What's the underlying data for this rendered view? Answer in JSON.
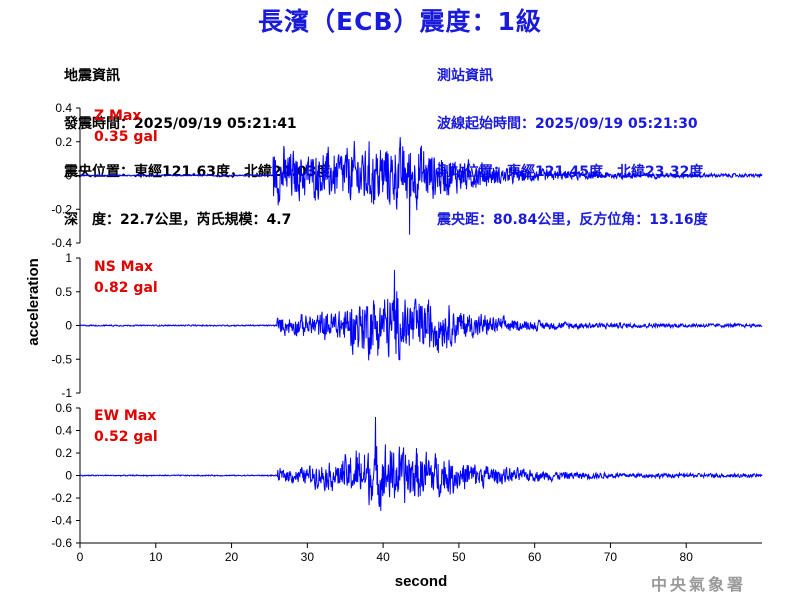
{
  "header": {
    "title": "長濱（ECB）震度：1級"
  },
  "quake_info": {
    "heading": "地震資訊",
    "origin_time": "發震時間：2025/09/19 05:21:41",
    "epicenter": "震央位置：東經121.63度，北緯24.03度",
    "depth_magnitude": "深　度：22.7公里，芮氏規模：4.7"
  },
  "station_info": {
    "heading": "測站資訊",
    "wave_start": "波線起始時間：2025/09/19 05:21:30",
    "location": "測站位置：東經121.45度，北緯23.32度",
    "distance": "震央距：80.84公里，反方位角：13.16度"
  },
  "watermark": "中央氣象署",
  "colors": {
    "title": "#1a1adc",
    "trace": "#0000ff",
    "max_label": "#e00000"
  },
  "chart_data": [
    {
      "type": "line",
      "component": "Z",
      "max_label": "Z Max",
      "max_value": "0.35 gal",
      "ylim": [
        -0.4,
        0.4
      ],
      "yticks": [
        "0.4",
        "0.2",
        "0",
        "-0.2",
        "-0.4"
      ],
      "ytick_values": [
        0.4,
        0.2,
        0,
        -0.2,
        -0.4
      ],
      "xlim": [
        0,
        90
      ],
      "noise_amplitude": 0.005,
      "onset_seconds": 25.5,
      "envelope": [
        [
          25.5,
          0.22
        ],
        [
          26,
          0.2
        ],
        [
          30,
          0.16
        ],
        [
          35,
          0.2
        ],
        [
          40,
          0.24
        ],
        [
          45,
          0.22
        ],
        [
          48,
          0.14
        ],
        [
          55,
          0.07
        ],
        [
          62,
          0.04
        ],
        [
          70,
          0.025
        ],
        [
          80,
          0.015
        ],
        [
          90,
          0.012
        ]
      ],
      "peak_at_seconds": 43.5,
      "peak_value": -0.35
    },
    {
      "type": "line",
      "component": "NS",
      "max_label": "NS Max",
      "max_value": "0.82 gal",
      "ylim": [
        -1,
        1
      ],
      "yticks": [
        "1",
        "0.5",
        "0",
        "-0.5",
        "-1"
      ],
      "ytick_values": [
        1,
        0.5,
        0,
        -0.5,
        -1
      ],
      "xlim": [
        0,
        90
      ],
      "noise_amplitude": 0.012,
      "onset_seconds": 26,
      "envelope": [
        [
          26,
          0.15
        ],
        [
          30,
          0.2
        ],
        [
          34,
          0.3
        ],
        [
          38,
          0.55
        ],
        [
          41,
          0.6
        ],
        [
          44,
          0.55
        ],
        [
          47,
          0.45
        ],
        [
          52,
          0.22
        ],
        [
          58,
          0.1
        ],
        [
          65,
          0.06
        ],
        [
          75,
          0.04
        ],
        [
          90,
          0.03
        ]
      ],
      "peak_at_seconds": 41.5,
      "peak_value": 0.82
    },
    {
      "type": "line",
      "component": "EW",
      "max_label": "EW Max",
      "max_value": "0.52 gal",
      "ylim": [
        -0.6,
        0.6
      ],
      "yticks": [
        "0.6",
        "0.4",
        "0.2",
        "0",
        "-0.2",
        "-0.4",
        "-0.6"
      ],
      "ytick_values": [
        0.6,
        0.4,
        0.2,
        0,
        -0.2,
        -0.4,
        -0.6
      ],
      "xlim": [
        0,
        90
      ],
      "noise_amplitude": 0.006,
      "onset_seconds": 26,
      "envelope": [
        [
          26,
          0.07
        ],
        [
          30,
          0.1
        ],
        [
          34,
          0.16
        ],
        [
          37,
          0.3
        ],
        [
          40,
          0.34
        ],
        [
          44,
          0.3
        ],
        [
          48,
          0.22
        ],
        [
          53,
          0.12
        ],
        [
          58,
          0.07
        ],
        [
          65,
          0.04
        ],
        [
          75,
          0.025
        ],
        [
          90,
          0.02
        ]
      ],
      "peak_at_seconds": 39,
      "peak_value": 0.52
    }
  ],
  "axes": {
    "xticks": [
      "0",
      "10",
      "20",
      "30",
      "40",
      "50",
      "60",
      "70",
      "80"
    ],
    "xtick_values": [
      0,
      10,
      20,
      30,
      40,
      50,
      60,
      70,
      80
    ],
    "xlabel": "second",
    "ylabel": "acceleration"
  }
}
